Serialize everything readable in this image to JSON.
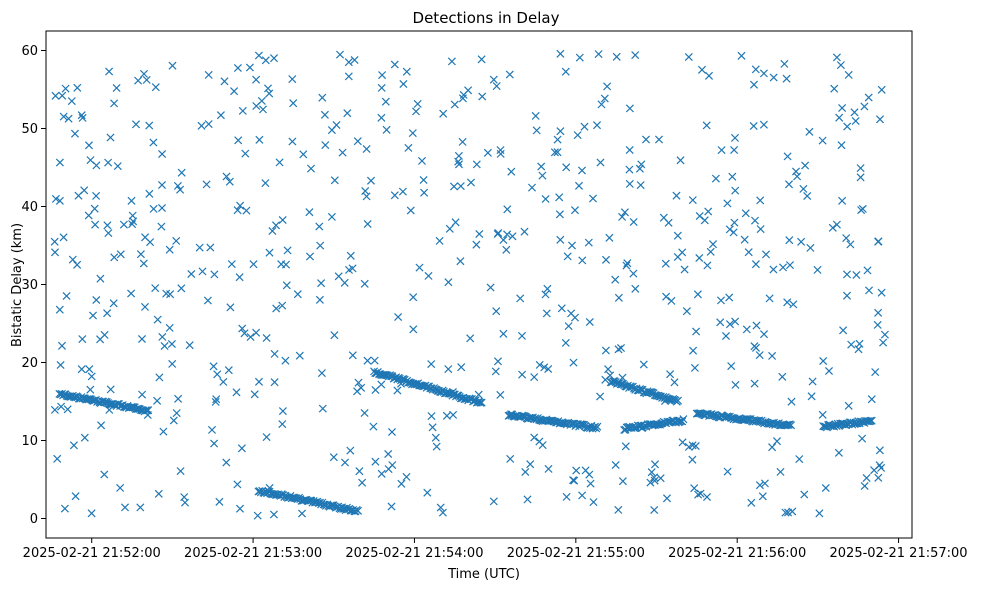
{
  "chart_data": {
    "type": "scatter",
    "title": "Detections in Delay",
    "xlabel": "Time (UTC)",
    "ylabel": "Bistatic Delay (km)",
    "marker": "x",
    "color": "#1f77b4",
    "xlim": [
      "2025-02-21 21:51:43",
      "2025-02-21 21:57:05"
    ],
    "ylim": [
      -2.5,
      62.5
    ],
    "grid": false,
    "x_ticks": [
      "2025-02-21 21:52:00",
      "2025-02-21 21:53:00",
      "2025-02-21 21:54:00",
      "2025-02-21 21:55:00",
      "2025-02-21 21:56:00",
      "2025-02-21 21:57:00"
    ],
    "y_ticks": [
      0,
      10,
      20,
      30,
      40,
      50,
      60
    ],
    "time_range": [
      "2025-02-21 21:51:46",
      "2025-02-21 21:56:56"
    ],
    "tracks": [
      {
        "x": [
          "2025-02-21 21:51:48",
          "2025-02-21 21:52:21"
        ],
        "y": [
          16.0,
          13.8
        ]
      },
      {
        "x": [
          "2025-02-21 21:53:02",
          "2025-02-21 21:53:39"
        ],
        "y": [
          3.6,
          0.9
        ]
      },
      {
        "x": [
          "2025-02-21 21:53:45",
          "2025-02-21 21:54:25"
        ],
        "y": [
          18.8,
          14.8
        ]
      },
      {
        "x": [
          "2025-02-21 21:54:35",
          "2025-02-21 21:55:08"
        ],
        "y": [
          13.3,
          11.6
        ]
      },
      {
        "x": [
          "2025-02-21 21:55:13",
          "2025-02-21 21:55:38"
        ],
        "y": [
          17.6,
          15.0
        ]
      },
      {
        "x": [
          "2025-02-21 21:55:18",
          "2025-02-21 21:55:40"
        ],
        "y": [
          11.5,
          12.6
        ]
      },
      {
        "x": [
          "2025-02-21 21:55:45",
          "2025-02-21 21:56:20"
        ],
        "y": [
          13.5,
          11.9
        ]
      },
      {
        "x": [
          "2025-02-21 21:56:32",
          "2025-02-21 21:56:50"
        ],
        "y": [
          11.8,
          12.5
        ]
      }
    ]
  }
}
